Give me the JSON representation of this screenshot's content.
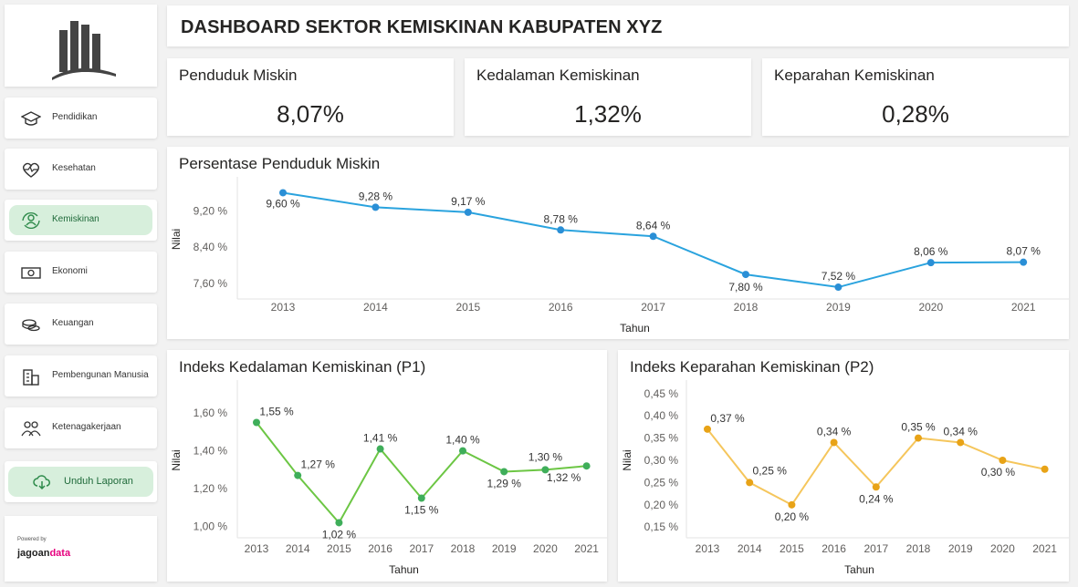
{
  "header": {
    "title": "DASHBOARD SEKTOR KEMISKINAN KABUPATEN XYZ"
  },
  "logo": {
    "icon": "building-logo-icon"
  },
  "sidebar": {
    "items": [
      {
        "label": "Pendidikan",
        "icon": "graduation-cap-icon",
        "active": false
      },
      {
        "label": "Kesehatan",
        "icon": "heartbeat-icon",
        "active": false
      },
      {
        "label": "Kemiskinan",
        "icon": "people-cycle-icon",
        "active": true
      },
      {
        "label": "Ekonomi",
        "icon": "money-icon",
        "active": false
      },
      {
        "label": "Keuangan",
        "icon": "coins-icon",
        "active": false
      },
      {
        "label": "Pembengunan Manusia",
        "icon": "building-icon",
        "active": false
      },
      {
        "label": "Ketenagakerjaan",
        "icon": "people-group-icon",
        "active": false
      }
    ],
    "download_label": "Unduh Laporan",
    "powered_by": "Powered by",
    "brand_part1": "jagoan",
    "brand_part2": "data"
  },
  "kpis": [
    {
      "title": "Penduduk Miskin",
      "value": "8,07%"
    },
    {
      "title": "Kedalaman Kemiskinan",
      "value": "1,32%"
    },
    {
      "title": "Keparahan Kemiskinan",
      "value": "0,28%"
    }
  ],
  "colors": {
    "blue": "#2aa3de",
    "green": "#6cc644",
    "green_dot": "#3fae5a",
    "yellow": "#f5c65c",
    "yellow_dot": "#e8a317",
    "accent_green": "#d7efdc"
  },
  "chart_data": [
    {
      "type": "line",
      "title": "Persentase Penduduk Miskin",
      "xlabel": "Tahun",
      "ylabel": "Nilai",
      "categories": [
        "2013",
        "2014",
        "2015",
        "2016",
        "2017",
        "2018",
        "2019",
        "2020",
        "2021"
      ],
      "values": [
        9.6,
        9.28,
        9.17,
        8.78,
        8.64,
        7.8,
        7.52,
        8.06,
        8.07
      ],
      "labels": [
        "9,60 %",
        "9,28 %",
        "9,17 %",
        "8,78 %",
        "8,64 %",
        "7,80 %",
        "7,52 %",
        "8,06 %",
        "8,07 %"
      ],
      "yticks": [
        7.6,
        8.4,
        9.2
      ],
      "ytick_labels": [
        "7,60 %",
        "8,40 %",
        "9,20 %"
      ],
      "ylim": [
        7.3,
        9.85
      ],
      "color": "#2aa3de",
      "dot_color": "#2a8fd6"
    },
    {
      "type": "line",
      "title": "Indeks Kedalaman Kemiskinan (P1)",
      "xlabel": "Tahun",
      "ylabel": "Nilai",
      "categories": [
        "2013",
        "2014",
        "2015",
        "2016",
        "2017",
        "2018",
        "2019",
        "2020",
        "2021"
      ],
      "values": [
        1.55,
        1.27,
        1.02,
        1.41,
        1.15,
        1.4,
        1.29,
        1.3,
        1.32
      ],
      "labels": [
        "1,55 %",
        "1,27 %",
        "1,02 %",
        "1,41 %",
        "1,15 %",
        "1,40 %",
        "1,29 %",
        "1,30 %",
        "1,32 %"
      ],
      "yticks": [
        1.0,
        1.2,
        1.4,
        1.6
      ],
      "ytick_labels": [
        "1,00 %",
        "1,20 %",
        "1,40 %",
        "1,60 %"
      ],
      "ylim": [
        0.95,
        1.75
      ],
      "color": "#6cc644",
      "dot_color": "#3fae5a"
    },
    {
      "type": "line",
      "title": "Indeks Keparahan Kemiskinan (P2)",
      "xlabel": "Tahun",
      "ylabel": "Nilai",
      "categories": [
        "2013",
        "2014",
        "2015",
        "2016",
        "2017",
        "2018",
        "2019",
        "2020",
        "2021"
      ],
      "values": [
        0.37,
        0.25,
        0.2,
        0.34,
        0.24,
        0.35,
        0.34,
        0.3,
        0.28
      ],
      "labels": [
        "0,37 %",
        "0,25 %",
        "0,20 %",
        "0,34 %",
        "0,24 %",
        "0,35 %",
        "0,34 %",
        "0,30 %",
        ""
      ],
      "yticks": [
        0.15,
        0.2,
        0.25,
        0.3,
        0.35,
        0.4,
        0.45
      ],
      "ytick_labels": [
        "0,15 %",
        "0,20 %",
        "0,25 %",
        "0,30 %",
        "0,35 %",
        "0,40 %",
        "0,45 %"
      ],
      "ylim": [
        0.13,
        0.47
      ],
      "color": "#f5c65c",
      "dot_color": "#e8a317"
    }
  ]
}
